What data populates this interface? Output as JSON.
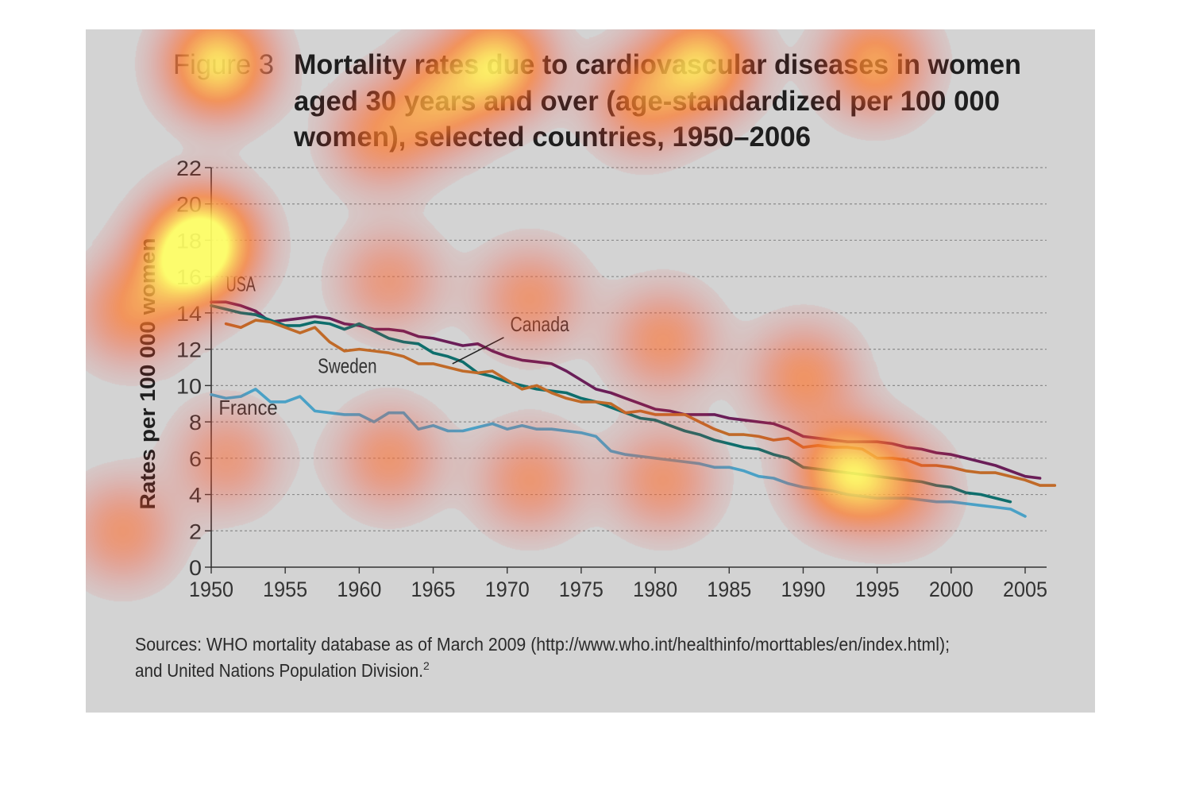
{
  "figure": {
    "label": "Figure 3",
    "title_lines": [
      "Mortality rates due to cardiovascular diseases in women",
      "aged 30 years and over (age-standardized per 100 000",
      "women), selected countries, 1950–2006"
    ],
    "source_lines": [
      "Sources: WHO mortality database as of March 2009 (http://www.who.int/healthinfo/morttables/en/index.html);",
      "and United Nations Population Division."
    ],
    "source_superscript": "2"
  },
  "colors": {
    "panel": "#d3d3d3",
    "title": "#1e1e1e",
    "axis": "#333333",
    "grid": "#8c8c8c",
    "USA": "#6a1e58",
    "Canada": "#0e6e6c",
    "Sweden": "#c06a28",
    "France": "#4aa1c6",
    "heat_yellow": "#ffff33",
    "heat_orange": "#ffaa00",
    "heat_red": "#ff2a2a"
  },
  "chart_data": {
    "type": "line",
    "title": "Mortality rates due to cardiovascular diseases in women aged 30 years and over (age-standardized per 100 000 women), selected countries, 1950–2006",
    "xlabel": "",
    "ylabel": "Rates per 100 000 women",
    "xlim": [
      1950,
      2007
    ],
    "ylim": [
      0,
      22
    ],
    "x_ticks": [
      1950,
      1955,
      1960,
      1965,
      1970,
      1975,
      1980,
      1985,
      1990,
      1995,
      2000,
      2005
    ],
    "y_ticks": [
      0,
      2,
      4,
      6,
      8,
      10,
      12,
      14,
      16,
      18,
      20,
      22
    ],
    "grid": "horizontal dashed",
    "series": [
      {
        "name": "USA",
        "x": [
          1950,
          1951,
          1952,
          1953,
          1954,
          1955,
          1956,
          1957,
          1958,
          1959,
          1960,
          1961,
          1962,
          1963,
          1964,
          1965,
          1966,
          1967,
          1968,
          1969,
          1970,
          1971,
          1972,
          1973,
          1974,
          1975,
          1976,
          1977,
          1978,
          1979,
          1980,
          1981,
          1982,
          1983,
          1984,
          1985,
          1986,
          1987,
          1988,
          1989,
          1990,
          1991,
          1992,
          1993,
          1994,
          1995,
          1996,
          1997,
          1998,
          1999,
          2000,
          2001,
          2002,
          2003,
          2004,
          2005,
          2006
        ],
        "values": [
          14.6,
          14.6,
          14.4,
          14.1,
          13.5,
          13.6,
          13.7,
          13.8,
          13.7,
          13.4,
          13.3,
          13.1,
          13.1,
          13.0,
          12.7,
          12.6,
          12.4,
          12.2,
          12.3,
          11.9,
          11.6,
          11.4,
          11.3,
          11.2,
          10.8,
          10.3,
          9.8,
          9.6,
          9.3,
          9.0,
          8.7,
          8.6,
          8.4,
          8.4,
          8.4,
          8.2,
          8.1,
          8.0,
          7.9,
          7.6,
          7.2,
          7.1,
          7.0,
          6.9,
          6.9,
          6.9,
          6.8,
          6.6,
          6.5,
          6.3,
          6.2,
          6.0,
          5.8,
          5.6,
          5.3,
          5.0,
          4.9
        ]
      },
      {
        "name": "Canada",
        "x": [
          1950,
          1951,
          1952,
          1953,
          1954,
          1955,
          1956,
          1957,
          1958,
          1959,
          1960,
          1961,
          1962,
          1963,
          1964,
          1965,
          1966,
          1967,
          1968,
          1969,
          1970,
          1971,
          1972,
          1973,
          1974,
          1975,
          1976,
          1977,
          1978,
          1979,
          1980,
          1981,
          1982,
          1983,
          1984,
          1985,
          1986,
          1987,
          1988,
          1989,
          1990,
          1991,
          1992,
          1993,
          1994,
          1995,
          1996,
          1997,
          1998,
          1999,
          2000,
          2001,
          2002,
          2003,
          2004
        ],
        "values": [
          14.4,
          14.2,
          14.0,
          13.9,
          13.6,
          13.3,
          13.3,
          13.5,
          13.4,
          13.1,
          13.4,
          13.0,
          12.6,
          12.4,
          12.3,
          11.8,
          11.6,
          11.3,
          10.7,
          10.5,
          10.2,
          10.0,
          9.8,
          9.7,
          9.6,
          9.3,
          9.1,
          8.8,
          8.5,
          8.2,
          8.1,
          7.8,
          7.5,
          7.3,
          7.0,
          6.8,
          6.6,
          6.5,
          6.2,
          6.0,
          5.5,
          5.4,
          5.3,
          5.2,
          5.1,
          5.0,
          4.9,
          4.8,
          4.7,
          4.5,
          4.4,
          4.1,
          4.0,
          3.8,
          3.6
        ]
      },
      {
        "name": "Sweden",
        "x": [
          1951,
          1952,
          1953,
          1954,
          1955,
          1956,
          1957,
          1958,
          1959,
          1960,
          1961,
          1962,
          1963,
          1964,
          1965,
          1966,
          1967,
          1968,
          1969,
          1970,
          1971,
          1972,
          1973,
          1974,
          1975,
          1976,
          1977,
          1978,
          1979,
          1980,
          1981,
          1982,
          1983,
          1984,
          1985,
          1986,
          1987,
          1988,
          1989,
          1990,
          1991,
          1992,
          1993,
          1994,
          1995,
          1996,
          1997,
          1998,
          1999,
          2000,
          2001,
          2002,
          2003,
          2004,
          2005,
          2006,
          2007
        ],
        "values": [
          13.4,
          13.2,
          13.6,
          13.5,
          13.2,
          12.9,
          13.2,
          12.4,
          11.9,
          12.0,
          11.9,
          11.8,
          11.6,
          11.2,
          11.2,
          11.0,
          10.8,
          10.7,
          10.8,
          10.3,
          9.8,
          10.0,
          9.6,
          9.3,
          9.1,
          9.1,
          9.0,
          8.5,
          8.6,
          8.4,
          8.4,
          8.4,
          8.0,
          7.6,
          7.3,
          7.3,
          7.2,
          7.0,
          7.1,
          6.6,
          6.7,
          6.6,
          6.6,
          6.5,
          6.0,
          6.0,
          5.9,
          5.6,
          5.6,
          5.5,
          5.3,
          5.2,
          5.2,
          5.0,
          4.8,
          4.5,
          4.5
        ]
      },
      {
        "name": "France",
        "x": [
          1950,
          1951,
          1952,
          1953,
          1954,
          1955,
          1956,
          1957,
          1958,
          1959,
          1960,
          1961,
          1962,
          1963,
          1964,
          1965,
          1966,
          1967,
          1968,
          1969,
          1970,
          1971,
          1972,
          1973,
          1974,
          1975,
          1976,
          1977,
          1978,
          1979,
          1980,
          1981,
          1982,
          1983,
          1984,
          1985,
          1986,
          1987,
          1988,
          1989,
          1990,
          1991,
          1992,
          1993,
          1994,
          1995,
          1996,
          1997,
          1998,
          1999,
          2000,
          2001,
          2002,
          2003,
          2004,
          2005
        ],
        "values": [
          9.5,
          9.3,
          9.4,
          9.8,
          9.1,
          9.1,
          9.4,
          8.6,
          8.5,
          8.4,
          8.4,
          8.0,
          8.5,
          8.5,
          7.6,
          7.8,
          7.5,
          7.5,
          7.7,
          7.9,
          7.6,
          7.8,
          7.6,
          7.6,
          7.5,
          7.4,
          7.2,
          6.4,
          6.2,
          6.1,
          6.0,
          5.9,
          5.8,
          5.7,
          5.5,
          5.5,
          5.3,
          5.0,
          4.9,
          4.6,
          4.4,
          4.3,
          4.2,
          4.0,
          3.9,
          3.8,
          3.8,
          3.8,
          3.7,
          3.6,
          3.6,
          3.5,
          3.4,
          3.3,
          3.2,
          2.8
        ]
      }
    ],
    "annotations": [
      {
        "text": "USA",
        "x": 1951,
        "y": 15.2
      },
      {
        "text": "Canada",
        "x": 1970.2,
        "y": 13.0,
        "pointer_to": [
          1966.3,
          11.2
        ]
      },
      {
        "text": "Sweden",
        "x": 1957.2,
        "y": 10.7
      },
      {
        "text": "France",
        "x": 1950.5,
        "y": 8.4
      }
    ]
  },
  "heatmap_overlay": {
    "hotspots": [
      {
        "x": 1949.5,
        "y": 18.0,
        "intensity": 1.0
      },
      {
        "x": 1993.0,
        "y": 5.2,
        "intensity": 0.85
      },
      {
        "x": 1948.0,
        "y": 16.5,
        "intensity": 0.6
      },
      {
        "x": 1944.5,
        "y": 14.0,
        "intensity": 0.45
      },
      {
        "x": 1944.0,
        "y": 2.0,
        "intensity": 0.4
      },
      {
        "x": 1951.0,
        "y": 6.0,
        "intensity": 0.35
      },
      {
        "x": 1962.0,
        "y": 15.8,
        "intensity": 0.35
      },
      {
        "x": 1962.0,
        "y": 6.0,
        "intensity": 0.4
      },
      {
        "x": 1971.5,
        "y": 14.8,
        "intensity": 0.4
      },
      {
        "x": 1971.5,
        "y": 4.8,
        "intensity": 0.4
      },
      {
        "x": 1980.5,
        "y": 12.5,
        "intensity": 0.42
      },
      {
        "x": 1980.5,
        "y": 4.8,
        "intensity": 0.4
      },
      {
        "x": 1990.0,
        "y": 10.5,
        "intensity": 0.45
      },
      {
        "x": 1996.5,
        "y": 4.2,
        "intensity": 0.35
      }
    ],
    "title_hotspots": [
      {
        "line": 0,
        "char": 4,
        "intensity": 0.9
      },
      {
        "line": 0,
        "char": 14,
        "intensity": 0.85
      },
      {
        "line": 0,
        "char": 28,
        "intensity": 0.8
      },
      {
        "line": 0,
        "char": 40,
        "intensity": 0.6
      },
      {
        "line": 1,
        "char": 10,
        "intensity": 0.55
      },
      {
        "line": 1,
        "char": 24,
        "intensity": 0.5
      },
      {
        "line": 2,
        "char": 6,
        "intensity": 0.45
      }
    ]
  }
}
